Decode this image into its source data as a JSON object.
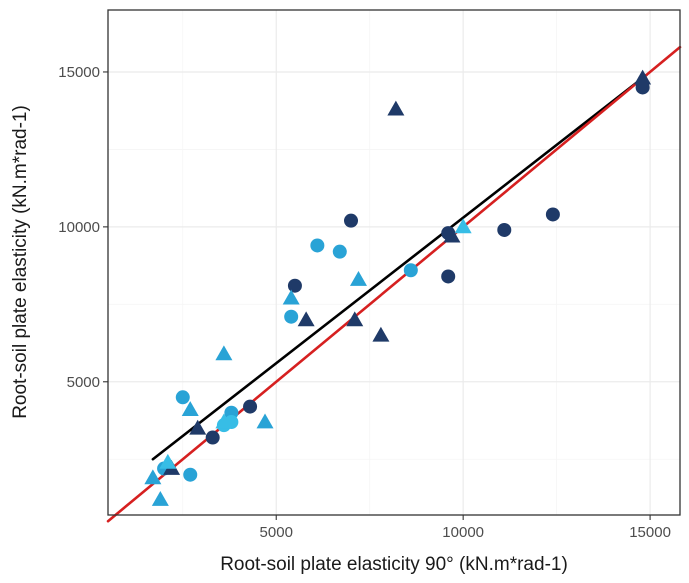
{
  "chart_data": {
    "type": "scatter",
    "title": "",
    "xlabel": "Root-soil plate elasticity 90° (kN.m*rad-1)",
    "ylabel": "Root-soil plate elasticity (kN.m*rad-1)",
    "xlim": [
      500,
      15800
    ],
    "ylim": [
      700,
      17000
    ],
    "xticks": [
      5000,
      10000,
      15000
    ],
    "yticks": [
      5000,
      10000,
      15000
    ],
    "xtick_labels": [
      "5000",
      "10000",
      "15000"
    ],
    "ytick_labels": [
      "5000",
      "10000",
      "15000"
    ],
    "grid": true,
    "legend": "none",
    "series": [
      {
        "marker": "circle",
        "color": "#1f3a68",
        "points": [
          [
            3300,
            3200
          ],
          [
            4300,
            4200
          ],
          [
            5500,
            8100
          ],
          [
            7000,
            10200
          ],
          [
            9600,
            8400
          ],
          [
            9600,
            9800
          ],
          [
            11100,
            9900
          ],
          [
            12400,
            10400
          ],
          [
            14800,
            14500
          ]
        ]
      },
      {
        "marker": "circle",
        "color": "#29a3d6",
        "points": [
          [
            2000,
            2200
          ],
          [
            2500,
            4500
          ],
          [
            2700,
            2000
          ],
          [
            3800,
            4000
          ],
          [
            5400,
            7100
          ],
          [
            6100,
            9400
          ],
          [
            6700,
            9200
          ],
          [
            8600,
            8600
          ]
        ]
      },
      {
        "marker": "circle",
        "color": "#37bde6",
        "points": [
          [
            3600,
            3600
          ],
          [
            3800,
            3700
          ]
        ]
      },
      {
        "marker": "triangle",
        "color": "#1f3a68",
        "points": [
          [
            2200,
            2200
          ],
          [
            2900,
            3500
          ],
          [
            5800,
            7000
          ],
          [
            7100,
            7000
          ],
          [
            7800,
            6500
          ],
          [
            8200,
            13800
          ],
          [
            9700,
            9700
          ],
          [
            14800,
            14800
          ]
        ]
      },
      {
        "marker": "triangle",
        "color": "#29a3d6",
        "points": [
          [
            1700,
            1900
          ],
          [
            1900,
            1200
          ],
          [
            2700,
            4100
          ],
          [
            3600,
            5900
          ],
          [
            4700,
            3700
          ],
          [
            5400,
            7700
          ],
          [
            7200,
            8300
          ]
        ]
      },
      {
        "marker": "triangle",
        "color": "#37bde6",
        "points": [
          [
            2100,
            2400
          ],
          [
            3600,
            3700
          ],
          [
            10000,
            10000
          ]
        ]
      }
    ],
    "lines": [
      {
        "kind": "fit",
        "color": "#000000",
        "x": [
          1700,
          14900
        ],
        "y": [
          2500,
          14900
        ]
      },
      {
        "kind": "one-to-one",
        "color": "#d62020",
        "x": [
          500,
          15800
        ],
        "y": [
          500,
          15800
        ]
      }
    ]
  }
}
